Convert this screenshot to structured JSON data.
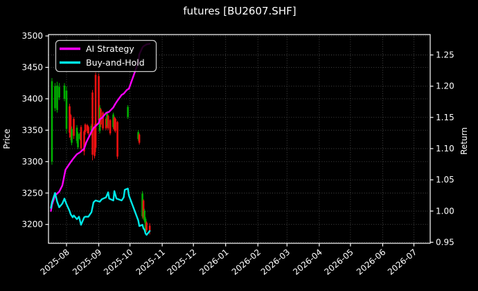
{
  "title": "futures [BU2607.SHF]",
  "colors": {
    "background": "#000000",
    "text": "#ffffff",
    "grid": "#4d4d4d",
    "spine": "#ffffff",
    "ai_strategy": "#ff00ff",
    "buy_and_hold": "#00e8e8",
    "candle_up": "#00b000",
    "candle_down": "#ee1111",
    "legend_border": "#cfcfcf"
  },
  "legend": {
    "items": [
      {
        "label": "AI Strategy",
        "color_key": "ai_strategy"
      },
      {
        "label": "Buy-and-Hold",
        "color_key": "buy_and_hold"
      }
    ]
  },
  "chart_data": {
    "type": "candlestick+line",
    "title": "futures [BU2607.SHF]",
    "grid": true,
    "legend_position": "upper left",
    "left_axis": {
      "label": "Price",
      "ticks": [
        3200,
        3250,
        3300,
        3350,
        3400,
        3450,
        3500
      ],
      "range": [
        3170,
        3502
      ]
    },
    "right_axis": {
      "label": "Return",
      "ticks": [
        0.95,
        1.0,
        1.05,
        1.1,
        1.15,
        1.2,
        1.25
      ],
      "range": [
        0.948,
        1.283
      ]
    },
    "x_axis": {
      "tick_labels": [
        "2025-08",
        "2025-09",
        "2025-10",
        "2025-11",
        "2025-12",
        "2026-01",
        "2026-02",
        "2026-03",
        "2026-04",
        "2026-05",
        "2026-06",
        "2026-07"
      ],
      "range": [
        "2025-07-15",
        "2026-07-16"
      ]
    },
    "candles": [
      [
        "2025-07-18",
        3300,
        3433,
        3295,
        3428
      ],
      [
        "2025-07-21",
        3385,
        3425,
        3380,
        3420
      ],
      [
        "2025-07-23",
        3382,
        3427,
        3378,
        3421
      ],
      [
        "2025-07-25",
        3402,
        3425,
        3398,
        3419
      ],
      [
        "2025-07-30",
        3400,
        3425,
        3396,
        3421
      ],
      [
        "2025-08-01",
        3352,
        3420,
        3345,
        3413
      ],
      [
        "2025-08-04",
        3388,
        3392,
        3338,
        3346
      ],
      [
        "2025-08-05",
        3374,
        3376,
        3334,
        3339
      ],
      [
        "2025-08-06",
        3330,
        3356,
        3326,
        3352
      ],
      [
        "2025-08-08",
        3368,
        3371,
        3336,
        3341
      ],
      [
        "2025-08-11",
        3333,
        3358,
        3329,
        3354
      ],
      [
        "2025-08-12",
        3323,
        3347,
        3320,
        3344
      ],
      [
        "2025-08-14",
        3336,
        3347,
        3334,
        3345
      ],
      [
        "2025-08-15",
        3355,
        3358,
        3315,
        3321
      ],
      [
        "2025-08-18",
        3348,
        3350,
        3310,
        3316
      ],
      [
        "2025-08-19",
        3359,
        3361,
        3343,
        3347
      ],
      [
        "2025-08-21",
        3358,
        3360,
        3345,
        3349
      ],
      [
        "2025-08-22",
        3355,
        3357,
        3342,
        3345
      ],
      [
        "2025-08-25",
        3345,
        3360,
        3342,
        3357
      ],
      [
        "2025-08-26",
        3410,
        3414,
        3302,
        3311
      ],
      [
        "2025-08-28",
        3355,
        3360,
        3305,
        3309
      ],
      [
        "2025-08-29",
        3438,
        3442,
        3315,
        3322
      ],
      [
        "2025-09-01",
        3436,
        3440,
        3360,
        3366
      ],
      [
        "2025-09-02",
        3349,
        3390,
        3345,
        3386
      ],
      [
        "2025-09-03",
        3383,
        3385,
        3355,
        3359
      ],
      [
        "2025-09-05",
        3378,
        3380,
        3350,
        3353
      ],
      [
        "2025-09-08",
        3368,
        3370,
        3350,
        3353
      ],
      [
        "2025-09-09",
        3358,
        3380,
        3355,
        3377
      ],
      [
        "2025-09-10",
        3373,
        3375,
        3350,
        3353
      ],
      [
        "2025-09-12",
        3366,
        3368,
        3342,
        3345
      ],
      [
        "2025-09-15",
        3355,
        3378,
        3352,
        3375
      ],
      [
        "2025-09-16",
        3370,
        3372,
        3348,
        3351
      ],
      [
        "2025-09-17",
        3368,
        3370,
        3346,
        3349
      ],
      [
        "2025-09-19",
        3363,
        3365,
        3304,
        3308
      ],
      [
        "2025-09-29",
        3371,
        3390,
        3368,
        3387
      ],
      [
        "2025-10-09",
        3336,
        3350,
        3333,
        3347
      ],
      [
        "2025-10-10",
        3343,
        3345,
        3327,
        3330
      ],
      [
        "2025-10-13",
        3213,
        3253,
        3209,
        3249
      ],
      [
        "2025-10-14",
        3238,
        3240,
        3208,
        3211
      ],
      [
        "2025-10-15",
        3206,
        3225,
        3203,
        3222
      ],
      [
        "2025-10-16",
        3189,
        3212,
        3186,
        3209
      ],
      [
        "2025-10-17",
        3203,
        3205,
        3188,
        3191
      ],
      [
        "2025-10-20",
        3198,
        3202,
        3184,
        3189
      ]
    ],
    "series": [
      {
        "name": "AI Strategy",
        "axis": "right",
        "color_key": "ai_strategy",
        "points": [
          [
            "2025-07-17",
            1.0
          ],
          [
            "2025-07-18",
            1.01
          ],
          [
            "2025-07-21",
            1.025
          ],
          [
            "2025-07-23",
            1.028
          ],
          [
            "2025-07-25",
            1.031
          ],
          [
            "2025-07-28",
            1.041
          ],
          [
            "2025-07-31",
            1.066
          ],
          [
            "2025-08-04",
            1.076
          ],
          [
            "2025-08-07",
            1.083
          ],
          [
            "2025-08-11",
            1.091
          ],
          [
            "2025-08-14",
            1.094
          ],
          [
            "2025-08-18",
            1.1
          ],
          [
            "2025-08-20",
            1.11
          ],
          [
            "2025-08-25",
            1.127
          ],
          [
            "2025-08-27",
            1.133
          ],
          [
            "2025-09-01",
            1.141
          ],
          [
            "2025-09-02",
            1.147
          ],
          [
            "2025-09-04",
            1.149
          ],
          [
            "2025-09-08",
            1.157
          ],
          [
            "2025-09-11",
            1.159
          ],
          [
            "2025-09-15",
            1.166
          ],
          [
            "2025-09-17",
            1.172
          ],
          [
            "2025-09-19",
            1.177
          ],
          [
            "2025-09-23",
            1.186
          ],
          [
            "2025-09-25",
            1.188
          ],
          [
            "2025-09-28",
            1.194
          ],
          [
            "2025-09-30",
            1.196
          ],
          [
            "2025-10-09",
            1.238
          ],
          [
            "2025-10-10",
            1.251
          ],
          [
            "2025-10-13",
            1.262
          ],
          [
            "2025-10-14",
            1.264
          ],
          [
            "2025-10-15",
            1.265
          ],
          [
            "2025-10-16",
            1.266
          ],
          [
            "2025-10-17",
            1.267
          ],
          [
            "2025-10-20",
            1.268
          ]
        ]
      },
      {
        "name": "Buy-and-Hold",
        "axis": "right",
        "color_key": "buy_and_hold",
        "points": [
          [
            "2025-07-17",
            1.005
          ],
          [
            "2025-07-18",
            1.014
          ],
          [
            "2025-07-21",
            1.029
          ],
          [
            "2025-07-23",
            1.015
          ],
          [
            "2025-07-25",
            1.006
          ],
          [
            "2025-07-28",
            1.012
          ],
          [
            "2025-07-30",
            1.02
          ],
          [
            "2025-08-01",
            1.011
          ],
          [
            "2025-08-04",
            1.0
          ],
          [
            "2025-08-05",
            0.995
          ],
          [
            "2025-08-07",
            0.99
          ],
          [
            "2025-08-08",
            0.993
          ],
          [
            "2025-08-11",
            0.987
          ],
          [
            "2025-08-13",
            0.991
          ],
          [
            "2025-08-15",
            0.978
          ],
          [
            "2025-08-18",
            0.99
          ],
          [
            "2025-08-19",
            0.991
          ],
          [
            "2025-08-22",
            0.991
          ],
          [
            "2025-08-25",
            0.998
          ],
          [
            "2025-08-27",
            1.014
          ],
          [
            "2025-08-29",
            1.017
          ],
          [
            "2025-09-02",
            1.015
          ],
          [
            "2025-09-04",
            1.019
          ],
          [
            "2025-09-08",
            1.022
          ],
          [
            "2025-09-10",
            1.03
          ],
          [
            "2025-09-11",
            1.02
          ],
          [
            "2025-09-15",
            1.017
          ],
          [
            "2025-09-16",
            1.032
          ],
          [
            "2025-09-18",
            1.02
          ],
          [
            "2025-09-23",
            1.017
          ],
          [
            "2025-09-25",
            1.022
          ],
          [
            "2025-09-26",
            1.034
          ],
          [
            "2025-09-29",
            1.036
          ],
          [
            "2025-09-30",
            1.025
          ],
          [
            "2025-10-09",
            0.985
          ],
          [
            "2025-10-10",
            0.976
          ],
          [
            "2025-10-13",
            0.978
          ],
          [
            "2025-10-14",
            0.972
          ],
          [
            "2025-10-15",
            0.97
          ],
          [
            "2025-10-16",
            0.964
          ],
          [
            "2025-10-17",
            0.962
          ],
          [
            "2025-10-20",
            0.968
          ]
        ]
      }
    ]
  }
}
